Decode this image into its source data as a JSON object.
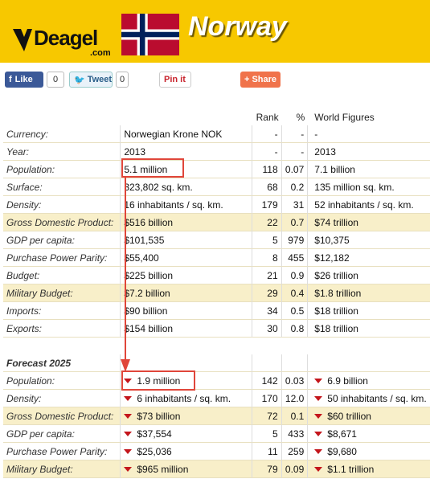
{
  "header": {
    "logo_text": "Deagel",
    "logo_sub": ".com",
    "country": "Norway"
  },
  "social": {
    "facebook_label": "Like",
    "facebook_count": "0",
    "twitter_label": "Tweet",
    "twitter_count": "0",
    "pinterest_label": "Pin it",
    "share_label": "Share"
  },
  "columns": {
    "rank": "Rank",
    "pct": "%",
    "world": "World Figures"
  },
  "rows": [
    {
      "label": "Currency:",
      "value": "Norwegian Krone NOK",
      "rank": "-",
      "pct": "-",
      "world": "-",
      "hl": false
    },
    {
      "label": "Year:",
      "value": "2013",
      "rank": "-",
      "pct": "-",
      "world": "2013",
      "hl": false
    },
    {
      "label": "Population:",
      "value": "5.1 million",
      "rank": "118",
      "pct": "0.07",
      "world": "7.1 billion",
      "hl": false
    },
    {
      "label": "Surface:",
      "value": "323,802 sq. km.",
      "rank": "68",
      "pct": "0.2",
      "world": "135 million sq. km.",
      "hl": false
    },
    {
      "label": "Density:",
      "value": "16 inhabitants / sq. km.",
      "rank": "179",
      "pct": "31",
      "world": "52 inhabitants / sq. km.",
      "hl": false
    },
    {
      "label": "Gross Domestic Product:",
      "value": "$516 billion",
      "rank": "22",
      "pct": "0.7",
      "world": "$74 trillion",
      "hl": true
    },
    {
      "label": "GDP per capita:",
      "value": "$101,535",
      "rank": "5",
      "pct": "979",
      "world": "$10,375",
      "hl": false
    },
    {
      "label": "Purchase Power Parity:",
      "value": "$55,400",
      "rank": "8",
      "pct": "455",
      "world": "$12,182",
      "hl": false
    },
    {
      "label": "Budget:",
      "value": "$225 billion",
      "rank": "21",
      "pct": "0.9",
      "world": "$26 trillion",
      "hl": false
    },
    {
      "label": "Military Budget:",
      "value": "$7.2 billion",
      "rank": "29",
      "pct": "0.4",
      "world": "$1.8 trillion",
      "hl": true
    },
    {
      "label": "Imports:",
      "value": "$90 billion",
      "rank": "34",
      "pct": "0.5",
      "world": "$18 trillion",
      "hl": false
    },
    {
      "label": "Exports:",
      "value": "$154 billion",
      "rank": "30",
      "pct": "0.8",
      "world": "$18 trillion",
      "hl": false
    }
  ],
  "forecast": {
    "title": "Forecast 2025",
    "rows": [
      {
        "label": "Population:",
        "value": "1.9 million",
        "rank": "142",
        "pct": "0.03",
        "world": "6.9 billion",
        "hl": false
      },
      {
        "label": "Density:",
        "value": "6 inhabitants / sq. km.",
        "rank": "170",
        "pct": "12.0",
        "world": "50 inhabitants / sq. km.",
        "hl": false
      },
      {
        "label": "Gross Domestic Product:",
        "value": "$73 billion",
        "rank": "72",
        "pct": "0.1",
        "world": "$60 trillion",
        "hl": true
      },
      {
        "label": "GDP per capita:",
        "value": "$37,554",
        "rank": "5",
        "pct": "433",
        "world": "$8,671",
        "hl": false
      },
      {
        "label": "Purchase Power Parity:",
        "value": "$25,036",
        "rank": "11",
        "pct": "259",
        "world": "$9,680",
        "hl": false
      },
      {
        "label": "Military Budget:",
        "value": "$965 million",
        "rank": "79",
        "pct": "0.09",
        "world": "$1.1 trillion",
        "hl": true
      }
    ]
  },
  "colors": {
    "header_bg": "#f7c800",
    "highlight_row": "#f8efc9",
    "annotation": "#e0463a",
    "down_arrow": "#c4161c"
  }
}
